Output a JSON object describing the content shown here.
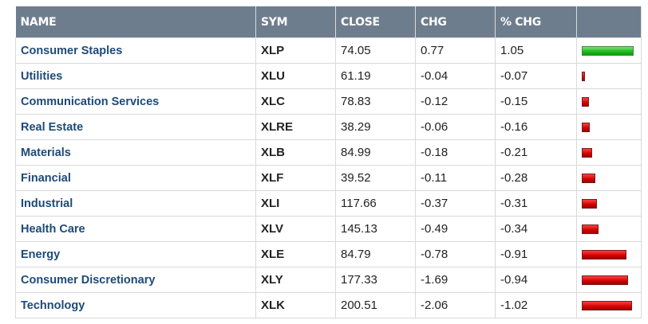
{
  "table": {
    "headers": [
      "NAME",
      "SYM",
      "CLOSE",
      "CHG",
      "% CHG"
    ],
    "rows": [
      [
        "Consumer Staples",
        "XLP",
        74.05,
        0.77,
        1.05
      ],
      [
        "Utilities",
        "XLU",
        61.19,
        -0.04,
        -0.07
      ],
      [
        "Communication Services",
        "XLC",
        78.83,
        -0.12,
        -0.15
      ],
      [
        "Real Estate",
        "XLRE",
        38.29,
        -0.06,
        -0.16
      ],
      [
        "Materials",
        "XLB",
        84.99,
        -0.18,
        -0.21
      ],
      [
        "Financial",
        "XLF",
        39.52,
        -0.11,
        -0.28
      ],
      [
        "Industrial",
        "XLI",
        117.66,
        -0.37,
        -0.31
      ],
      [
        "Health Care",
        "XLV",
        145.13,
        -0.49,
        -0.34
      ],
      [
        "Energy",
        "XLE",
        84.79,
        -0.78,
        -0.91
      ],
      [
        "Consumer Discretionary",
        "XLY",
        177.33,
        -1.69,
        -0.94
      ],
      [
        "Technology",
        "XLK",
        200.51,
        -2.06,
        -1.02
      ]
    ]
  }
}
